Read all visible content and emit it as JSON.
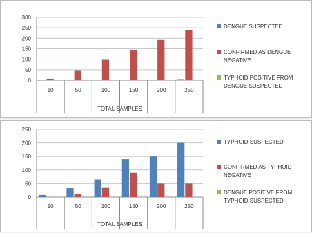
{
  "colors": {
    "blue": "#4f81bd",
    "red": "#c0504d",
    "green": "#9bbb59",
    "grid": "#c8c8c8",
    "axis": "#8c8c8c"
  },
  "chart_data": [
    {
      "type": "bar",
      "title": "",
      "xlabel": "TOTAL SAMPLES",
      "ylabel": "",
      "ylim": [
        0,
        300
      ],
      "yticks": [
        0,
        50,
        100,
        150,
        200,
        250,
        300
      ],
      "yticks_text": [
        "0",
        "50",
        "100",
        "150",
        "200",
        "250",
        "300"
      ],
      "categories": [
        "10",
        "50",
        "100",
        "150",
        "200",
        "250"
      ],
      "grid": true,
      "legend_position": "right",
      "series": [
        {
          "name": "DENGUE SUSPECTED",
          "color": "#4f81bd",
          "values": [
            0,
            0,
            0,
            3,
            3,
            5
          ]
        },
        {
          "name": "CONFIRMED AS DENGUE NEGATIVE",
          "color": "#c0504d",
          "values": [
            7,
            48,
            97,
            145,
            192,
            240
          ]
        },
        {
          "name": "TYPHOID POSITIVE FROM DENGUE SUSPECTED",
          "color": "#9bbb59",
          "values": [
            0,
            0,
            0,
            0,
            0,
            0
          ]
        }
      ],
      "legend_lines": [
        [
          "DENGUE SUSPECTED"
        ],
        [
          "CONFIRMED AS DENGUE",
          "NEGATIVE"
        ],
        [
          "TYPHOID POSITIVE FROM",
          "DENGUE SUSPECTED"
        ]
      ]
    },
    {
      "type": "bar",
      "title": "",
      "xlabel": "TOTAL SAMPLES",
      "ylabel": "",
      "ylim": [
        0,
        250
      ],
      "yticks": [
        0,
        50,
        100,
        150,
        200,
        250
      ],
      "yticks_text": [
        "0",
        "50",
        "100",
        "150",
        "200",
        "250"
      ],
      "categories": [
        "10",
        "50",
        "100",
        "150",
        "200",
        "250"
      ],
      "grid": true,
      "legend_position": "right",
      "series": [
        {
          "name": "TYPHOID SUSPECTED",
          "color": "#4f81bd",
          "values": [
            8,
            33,
            65,
            140,
            150,
            200
          ]
        },
        {
          "name": "CONFIRMED AS TYPHOID NEGATIVE",
          "color": "#c0504d",
          "values": [
            0,
            12,
            34,
            90,
            50,
            50
          ]
        },
        {
          "name": "DENGUE POSITIVE FROM TYPHOID SUSPECTED",
          "color": "#9bbb59",
          "values": [
            0,
            0,
            0,
            0,
            0,
            0
          ]
        }
      ],
      "legend_lines": [
        [
          "TYPHOID SUSPECTED"
        ],
        [
          "CONFIRMED AS TYPHOID",
          "NEGATIVE"
        ],
        [
          "DENGUE POSITIVE FROM",
          "TYPHOID SUSPECTED"
        ]
      ]
    }
  ]
}
